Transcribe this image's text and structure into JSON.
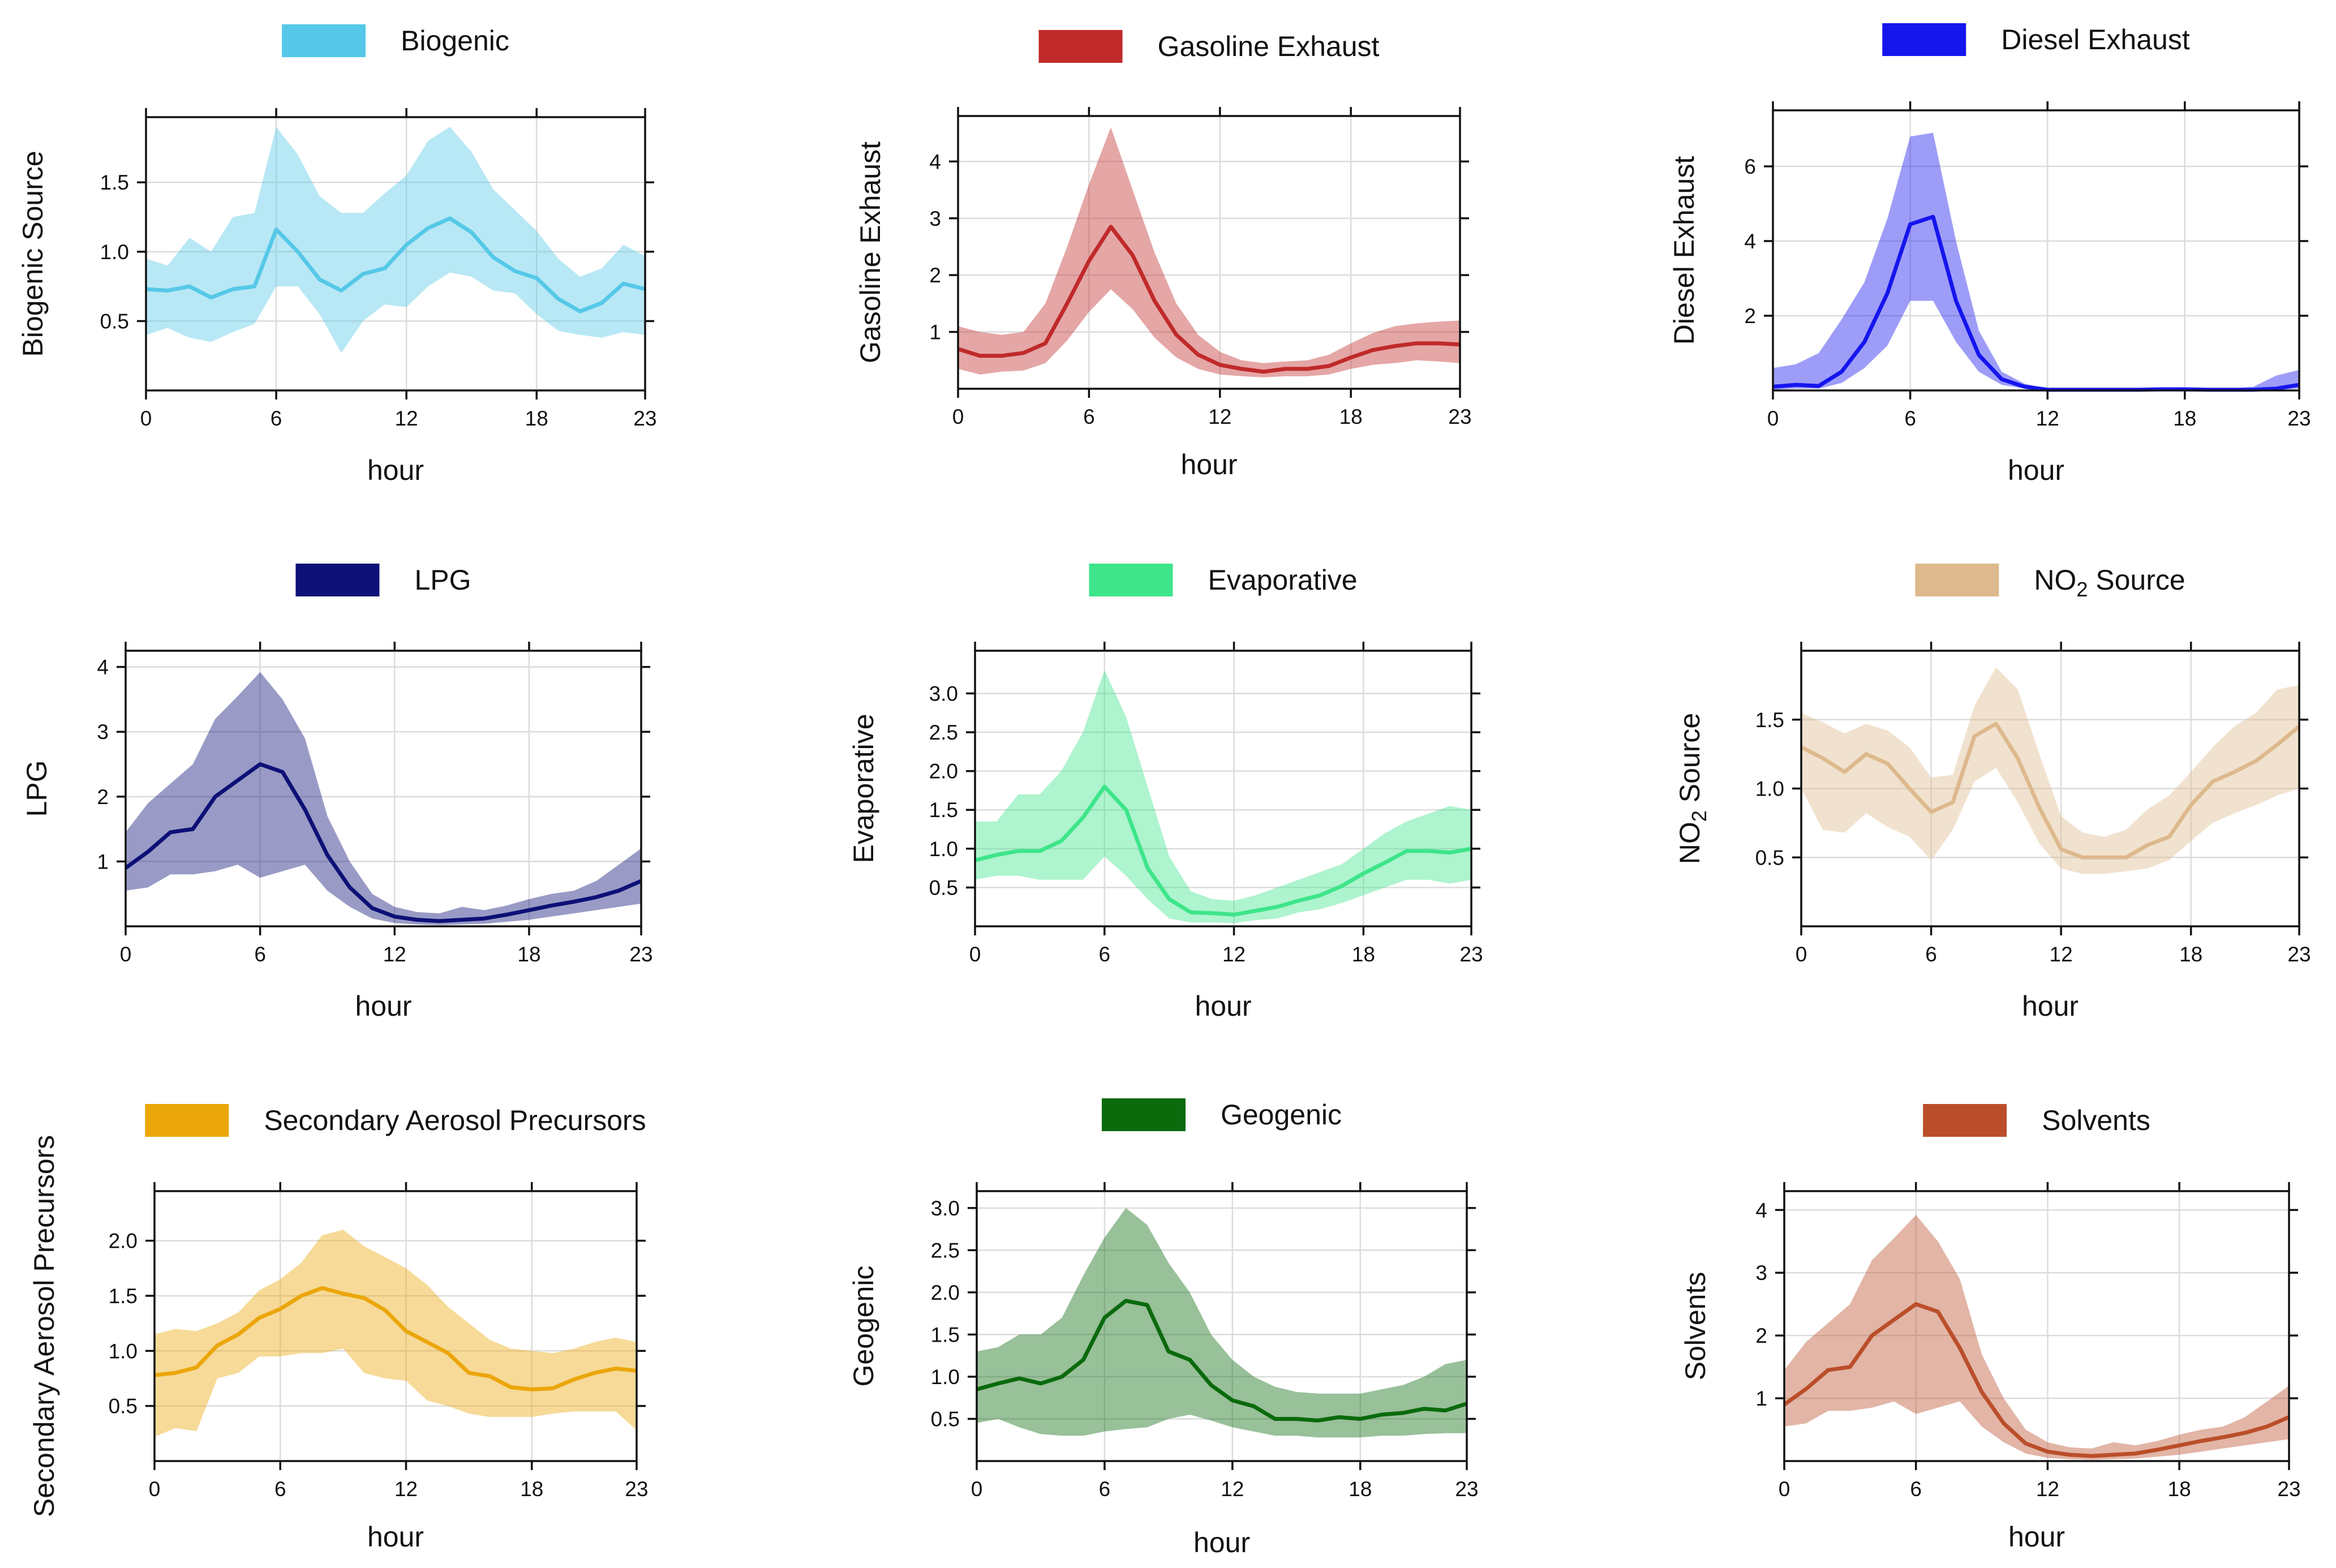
{
  "chart_data": [
    {
      "type": "line",
      "title": "Biogenic",
      "legend": "Biogenic",
      "legend_sub": "",
      "legend_suffix": "",
      "ylabel": "Biogenic Source",
      "ylabel_sub": "",
      "ylabel_suffix": "",
      "xlabel": "hour",
      "color": "#56C8E8",
      "xlim": [
        0,
        23
      ],
      "ylim": [
        0.0,
        1.97
      ],
      "xticks": [
        0,
        6,
        12,
        18,
        23
      ],
      "yticks": [
        "0.5",
        "1.0",
        "1.5"
      ],
      "x": [
        0,
        1,
        2,
        3,
        4,
        5,
        6,
        7,
        8,
        9,
        10,
        11,
        12,
        13,
        14,
        15,
        16,
        17,
        18,
        19,
        20,
        21,
        22,
        23
      ],
      "mean": [
        0.73,
        0.72,
        0.75,
        0.67,
        0.73,
        0.75,
        1.16,
        1.0,
        0.8,
        0.72,
        0.84,
        0.88,
        1.05,
        1.17,
        1.24,
        1.14,
        0.96,
        0.86,
        0.81,
        0.66,
        0.57,
        0.63,
        0.77,
        0.73
      ],
      "lower": [
        0.4,
        0.45,
        0.38,
        0.35,
        0.42,
        0.48,
        0.75,
        0.75,
        0.55,
        0.27,
        0.5,
        0.62,
        0.6,
        0.75,
        0.85,
        0.82,
        0.72,
        0.7,
        0.55,
        0.43,
        0.4,
        0.38,
        0.42,
        0.4
      ],
      "upper": [
        0.95,
        0.9,
        1.1,
        1.0,
        1.25,
        1.28,
        1.9,
        1.7,
        1.4,
        1.28,
        1.28,
        1.42,
        1.55,
        1.8,
        1.9,
        1.72,
        1.45,
        1.3,
        1.15,
        0.95,
        0.82,
        0.88,
        1.05,
        0.97
      ]
    },
    {
      "type": "line",
      "title": "Gasoline Exhaust",
      "legend": "Gasoline Exhaust",
      "legend_sub": "",
      "legend_suffix": "",
      "ylabel": "Gasoline Exhaust",
      "ylabel_sub": "",
      "ylabel_suffix": "",
      "xlabel": "hour",
      "color": "#C02A2A",
      "xlim": [
        0,
        23
      ],
      "ylim": [
        0.0,
        4.8
      ],
      "xticks": [
        0,
        6,
        12,
        18,
        23
      ],
      "yticks": [
        "1",
        "2",
        "3",
        "4"
      ],
      "x": [
        0,
        1,
        2,
        3,
        4,
        5,
        6,
        7,
        8,
        9,
        10,
        11,
        12,
        13,
        14,
        15,
        16,
        17,
        18,
        19,
        20,
        21,
        22,
        23
      ],
      "mean": [
        0.7,
        0.58,
        0.58,
        0.63,
        0.8,
        1.5,
        2.25,
        2.85,
        2.35,
        1.55,
        0.95,
        0.6,
        0.42,
        0.35,
        0.3,
        0.35,
        0.35,
        0.4,
        0.55,
        0.68,
        0.75,
        0.8,
        0.8,
        0.78
      ],
      "lower": [
        0.35,
        0.25,
        0.3,
        0.32,
        0.45,
        0.85,
        1.35,
        1.75,
        1.4,
        0.9,
        0.55,
        0.35,
        0.25,
        0.22,
        0.2,
        0.22,
        0.22,
        0.25,
        0.35,
        0.42,
        0.45,
        0.5,
        0.48,
        0.45
      ],
      "upper": [
        1.1,
        1.0,
        0.95,
        1.0,
        1.5,
        2.5,
        3.6,
        4.6,
        3.5,
        2.4,
        1.5,
        0.95,
        0.65,
        0.5,
        0.45,
        0.48,
        0.5,
        0.6,
        0.8,
        0.98,
        1.1,
        1.15,
        1.18,
        1.2
      ]
    },
    {
      "type": "line",
      "title": "Diesel Exhaust",
      "legend": "Diesel Exhaust",
      "legend_sub": "",
      "legend_suffix": "",
      "ylabel": "Diesel Exhaust",
      "ylabel_sub": "",
      "ylabel_suffix": "",
      "xlabel": "hour",
      "color": "#1515EE",
      "xlim": [
        0,
        23
      ],
      "ylim": [
        0.0,
        7.5
      ],
      "xticks": [
        0,
        6,
        12,
        18,
        23
      ],
      "yticks": [
        "2",
        "4",
        "6"
      ],
      "x": [
        0,
        1,
        2,
        3,
        4,
        5,
        6,
        7,
        8,
        9,
        10,
        11,
        12,
        13,
        14,
        15,
        16,
        17,
        18,
        19,
        20,
        21,
        22,
        23
      ],
      "mean": [
        0.1,
        0.15,
        0.12,
        0.5,
        1.3,
        2.6,
        4.45,
        4.65,
        2.4,
        0.95,
        0.3,
        0.1,
        0.02,
        0.02,
        0.02,
        0.02,
        0.02,
        0.03,
        0.03,
        0.02,
        0.02,
        0.02,
        0.05,
        0.15
      ],
      "lower": [
        0.02,
        0.05,
        0.05,
        0.2,
        0.6,
        1.2,
        2.4,
        2.4,
        1.3,
        0.5,
        0.15,
        0.05,
        0.01,
        0.01,
        0.01,
        0.01,
        0.01,
        0.01,
        0.01,
        0.01,
        0.01,
        0.01,
        0.02,
        0.05
      ],
      "upper": [
        0.6,
        0.7,
        1.0,
        1.9,
        2.9,
        4.6,
        6.8,
        6.9,
        4.0,
        1.6,
        0.5,
        0.18,
        0.05,
        0.04,
        0.04,
        0.04,
        0.05,
        0.06,
        0.06,
        0.05,
        0.05,
        0.1,
        0.4,
        0.55
      ]
    },
    {
      "type": "line",
      "title": "LPG",
      "legend": "LPG",
      "legend_sub": "",
      "legend_suffix": "",
      "ylabel": "LPG",
      "ylabel_sub": "",
      "ylabel_suffix": "",
      "xlabel": "hour",
      "color": "#0D1076",
      "xlim": [
        0,
        23
      ],
      "ylim": [
        0.0,
        4.25
      ],
      "xticks": [
        0,
        6,
        12,
        18,
        23
      ],
      "yticks": [
        "1",
        "2",
        "3",
        "4"
      ],
      "x": [
        0,
        1,
        2,
        3,
        4,
        5,
        6,
        7,
        8,
        9,
        10,
        11,
        12,
        13,
        14,
        15,
        16,
        17,
        18,
        19,
        20,
        21,
        22,
        23
      ],
      "mean": [
        0.9,
        1.15,
        1.45,
        1.5,
        2.0,
        2.25,
        2.5,
        2.38,
        1.8,
        1.1,
        0.6,
        0.28,
        0.15,
        0.1,
        0.08,
        0.1,
        0.12,
        0.18,
        0.25,
        0.32,
        0.38,
        0.45,
        0.55,
        0.7
      ],
      "lower": [
        0.55,
        0.6,
        0.8,
        0.8,
        0.85,
        0.95,
        0.75,
        0.85,
        0.95,
        0.55,
        0.3,
        0.12,
        0.05,
        0.03,
        0.02,
        0.03,
        0.04,
        0.07,
        0.1,
        0.15,
        0.2,
        0.25,
        0.3,
        0.35
      ],
      "upper": [
        1.45,
        1.9,
        2.2,
        2.5,
        3.2,
        3.55,
        3.92,
        3.5,
        2.9,
        1.7,
        1.0,
        0.5,
        0.3,
        0.22,
        0.2,
        0.3,
        0.25,
        0.32,
        0.42,
        0.5,
        0.55,
        0.7,
        0.95,
        1.2
      ]
    },
    {
      "type": "line",
      "title": "Evaporative",
      "legend": "Evaporative",
      "legend_sub": "",
      "legend_suffix": "",
      "ylabel": "Evaporative",
      "ylabel_sub": "",
      "ylabel_suffix": "",
      "xlabel": "hour",
      "color": "#3EE58A",
      "xlim": [
        0,
        23
      ],
      "ylim": [
        0.0,
        3.55
      ],
      "xticks": [
        0,
        6,
        12,
        18,
        23
      ],
      "yticks": [
        "0.5",
        "1.0",
        "1.5",
        "2.0",
        "2.5",
        "3.0"
      ],
      "x": [
        0,
        1,
        2,
        3,
        4,
        5,
        6,
        7,
        8,
        9,
        10,
        11,
        12,
        13,
        14,
        15,
        16,
        17,
        18,
        19,
        20,
        21,
        22,
        23
      ],
      "mean": [
        0.85,
        0.92,
        0.97,
        0.97,
        1.1,
        1.4,
        1.8,
        1.5,
        0.75,
        0.35,
        0.18,
        0.17,
        0.15,
        0.2,
        0.25,
        0.33,
        0.4,
        0.52,
        0.68,
        0.82,
        0.97,
        0.97,
        0.95,
        1.0
      ],
      "lower": [
        0.6,
        0.65,
        0.65,
        0.6,
        0.6,
        0.6,
        0.9,
        0.65,
        0.35,
        0.1,
        0.05,
        0.05,
        0.04,
        0.08,
        0.1,
        0.18,
        0.22,
        0.3,
        0.4,
        0.5,
        0.6,
        0.6,
        0.55,
        0.6
      ],
      "upper": [
        1.35,
        1.35,
        1.7,
        1.7,
        2.0,
        2.5,
        3.3,
        2.7,
        1.8,
        0.9,
        0.45,
        0.35,
        0.33,
        0.4,
        0.5,
        0.6,
        0.7,
        0.8,
        1.0,
        1.2,
        1.35,
        1.45,
        1.55,
        1.5
      ]
    },
    {
      "type": "line",
      "title": "NO2 Source",
      "legend": "NO",
      "legend_sub": "2",
      "legend_suffix": " Source",
      "ylabel": "NO",
      "ylabel_sub": "2",
      "ylabel_suffix": " Source",
      "xlabel": "hour",
      "color": "#DDB98D",
      "xlim": [
        0,
        23
      ],
      "ylim": [
        0.0,
        2.0
      ],
      "xticks": [
        0,
        6,
        12,
        18,
        23
      ],
      "yticks": [
        "0.5",
        "1.0",
        "1.5"
      ],
      "x": [
        0,
        1,
        2,
        3,
        4,
        5,
        6,
        7,
        8,
        9,
        10,
        11,
        12,
        13,
        14,
        15,
        16,
        17,
        18,
        19,
        20,
        21,
        22,
        23
      ],
      "mean": [
        1.3,
        1.22,
        1.12,
        1.25,
        1.18,
        1.0,
        0.83,
        0.9,
        1.38,
        1.47,
        1.22,
        0.86,
        0.56,
        0.5,
        0.5,
        0.5,
        0.59,
        0.65,
        0.88,
        1.05,
        1.12,
        1.2,
        1.32,
        1.45
      ],
      "lower": [
        1.0,
        0.7,
        0.68,
        0.82,
        0.72,
        0.65,
        0.48,
        0.7,
        1.05,
        1.15,
        0.9,
        0.6,
        0.42,
        0.38,
        0.38,
        0.4,
        0.42,
        0.48,
        0.62,
        0.75,
        0.82,
        0.88,
        0.95,
        1.0
      ],
      "upper": [
        1.55,
        1.48,
        1.4,
        1.47,
        1.42,
        1.3,
        1.08,
        1.1,
        1.6,
        1.88,
        1.72,
        1.25,
        0.8,
        0.68,
        0.65,
        0.7,
        0.85,
        0.95,
        1.12,
        1.3,
        1.45,
        1.55,
        1.72,
        1.75
      ]
    },
    {
      "type": "line",
      "title": "Secondary Aerosol Precursors",
      "legend": "Secondary Aerosol Precursors",
      "legend_sub": "",
      "legend_suffix": "",
      "ylabel": "Secondary Aerosol Precursors",
      "ylabel_sub": "",
      "ylabel_suffix": "",
      "xlabel": "hour",
      "color": "#EBA60A",
      "xlim": [
        0,
        23
      ],
      "ylim": [
        0.0,
        2.45
      ],
      "xticks": [
        0,
        6,
        12,
        18,
        23
      ],
      "yticks": [
        "0.5",
        "1.0",
        "1.5",
        "2.0"
      ],
      "x": [
        0,
        1,
        2,
        3,
        4,
        5,
        6,
        7,
        8,
        9,
        10,
        11,
        12,
        13,
        14,
        15,
        16,
        17,
        18,
        19,
        20,
        21,
        22,
        23
      ],
      "mean": [
        0.78,
        0.8,
        0.85,
        1.05,
        1.15,
        1.3,
        1.38,
        1.5,
        1.57,
        1.52,
        1.48,
        1.37,
        1.18,
        1.08,
        0.98,
        0.8,
        0.77,
        0.67,
        0.65,
        0.66,
        0.74,
        0.8,
        0.84,
        0.82
      ],
      "lower": [
        0.22,
        0.3,
        0.27,
        0.75,
        0.8,
        0.95,
        0.95,
        0.98,
        0.98,
        1.02,
        0.8,
        0.75,
        0.73,
        0.55,
        0.5,
        0.43,
        0.4,
        0.4,
        0.4,
        0.43,
        0.45,
        0.45,
        0.45,
        0.28
      ],
      "upper": [
        1.15,
        1.2,
        1.18,
        1.25,
        1.35,
        1.55,
        1.65,
        1.8,
        2.05,
        2.1,
        1.95,
        1.85,
        1.75,
        1.6,
        1.4,
        1.25,
        1.1,
        1.02,
        1.0,
        0.98,
        1.02,
        1.08,
        1.12,
        1.08
      ]
    },
    {
      "type": "line",
      "title": "Geogenic",
      "legend": "Geogenic",
      "legend_sub": "",
      "legend_suffix": "",
      "ylabel": "Geogenic",
      "ylabel_sub": "",
      "ylabel_suffix": "",
      "xlabel": "hour",
      "color": "#0A6A0C",
      "xlim": [
        0,
        23
      ],
      "ylim": [
        0.0,
        3.2
      ],
      "xticks": [
        0,
        6,
        12,
        18,
        23
      ],
      "yticks": [
        "0.5",
        "1.0",
        "1.5",
        "2.0",
        "2.5",
        "3.0"
      ],
      "x": [
        0,
        1,
        2,
        3,
        4,
        5,
        6,
        7,
        8,
        9,
        10,
        11,
        12,
        13,
        14,
        15,
        16,
        17,
        18,
        19,
        20,
        21,
        22,
        23
      ],
      "mean": [
        0.85,
        0.92,
        0.98,
        0.92,
        1.0,
        1.2,
        1.7,
        1.9,
        1.85,
        1.3,
        1.2,
        0.9,
        0.72,
        0.65,
        0.5,
        0.5,
        0.48,
        0.52,
        0.5,
        0.55,
        0.57,
        0.62,
        0.6,
        0.68
      ],
      "lower": [
        0.45,
        0.5,
        0.4,
        0.32,
        0.3,
        0.3,
        0.35,
        0.38,
        0.4,
        0.5,
        0.55,
        0.48,
        0.4,
        0.35,
        0.3,
        0.3,
        0.28,
        0.28,
        0.28,
        0.3,
        0.3,
        0.32,
        0.33,
        0.33
      ],
      "upper": [
        1.3,
        1.35,
        1.5,
        1.5,
        1.7,
        2.2,
        2.65,
        3.0,
        2.8,
        2.35,
        2.0,
        1.5,
        1.2,
        1.0,
        0.88,
        0.82,
        0.8,
        0.8,
        0.8,
        0.85,
        0.9,
        1.0,
        1.15,
        1.2
      ]
    },
    {
      "type": "line",
      "title": "Solvents",
      "legend": "Solvents",
      "legend_sub": "",
      "legend_suffix": "",
      "ylabel": "Solvents",
      "ylabel_sub": "",
      "ylabel_suffix": "",
      "xlabel": "hour",
      "color": "#BB4E2A",
      "xlim": [
        0,
        23
      ],
      "ylim": [
        0.0,
        4.3
      ],
      "xticks": [
        0,
        6,
        12,
        18,
        23
      ],
      "yticks": [
        "1",
        "2",
        "3",
        "4"
      ],
      "x": [
        0,
        1,
        2,
        3,
        4,
        5,
        6,
        7,
        8,
        9,
        10,
        11,
        12,
        13,
        14,
        15,
        16,
        17,
        18,
        19,
        20,
        21,
        22,
        23
      ],
      "mean": [
        0.9,
        1.15,
        1.45,
        1.5,
        2.0,
        2.25,
        2.5,
        2.38,
        1.8,
        1.1,
        0.6,
        0.28,
        0.15,
        0.1,
        0.08,
        0.1,
        0.12,
        0.18,
        0.25,
        0.32,
        0.38,
        0.45,
        0.55,
        0.7
      ],
      "lower": [
        0.55,
        0.6,
        0.8,
        0.8,
        0.85,
        0.95,
        0.75,
        0.85,
        0.95,
        0.55,
        0.3,
        0.12,
        0.05,
        0.03,
        0.02,
        0.03,
        0.04,
        0.07,
        0.1,
        0.15,
        0.2,
        0.25,
        0.3,
        0.35
      ],
      "upper": [
        1.45,
        1.9,
        2.2,
        2.5,
        3.2,
        3.55,
        3.92,
        3.5,
        2.9,
        1.7,
        1.0,
        0.5,
        0.3,
        0.22,
        0.2,
        0.3,
        0.25,
        0.32,
        0.42,
        0.5,
        0.55,
        0.7,
        0.95,
        1.2
      ]
    }
  ]
}
